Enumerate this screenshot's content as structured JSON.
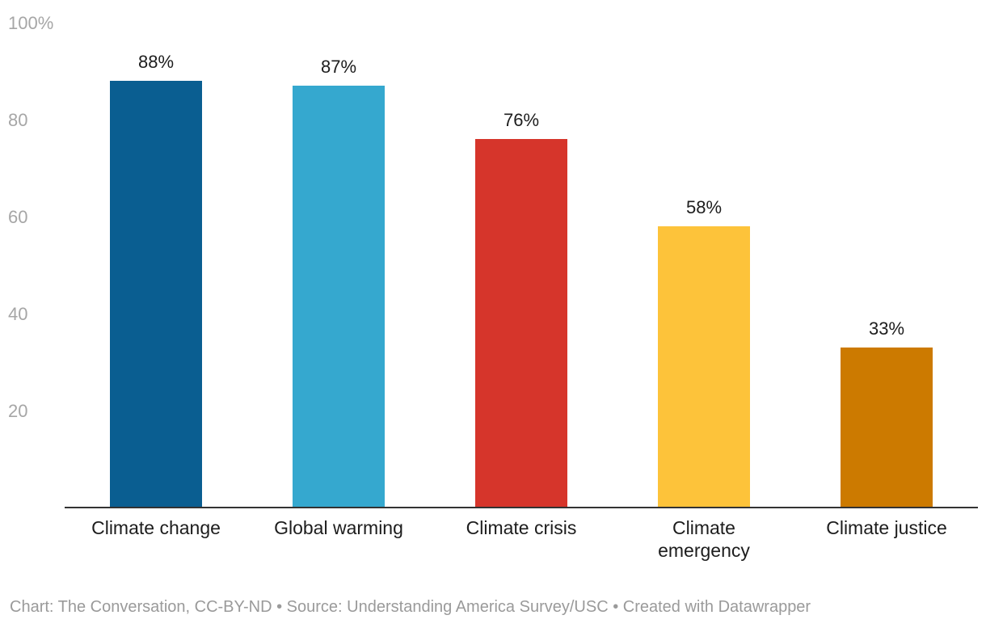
{
  "chart_data": {
    "type": "bar",
    "categories": [
      "Climate change",
      "Global warming",
      "Climate crisis",
      "Climate emergency",
      "Climate justice"
    ],
    "category_lines": [
      [
        "Climate change"
      ],
      [
        "Global warming"
      ],
      [
        "Climate crisis"
      ],
      [
        "Climate",
        "emergency"
      ],
      [
        "Climate justice"
      ]
    ],
    "values": [
      88,
      87,
      76,
      58,
      33
    ],
    "value_labels": [
      "88%",
      "87%",
      "76%",
      "58%",
      "33%"
    ],
    "colors": [
      "#0a5e91",
      "#35a8cf",
      "#d6352b",
      "#fdc33a",
      "#cc7a00"
    ],
    "ylim": [
      0,
      100
    ],
    "yticks": [
      20,
      40,
      60,
      80,
      100
    ],
    "ytick_labels": [
      "20",
      "40",
      "60",
      "80",
      "100%"
    ],
    "grid": false,
    "title": "",
    "xlabel": "",
    "ylabel": ""
  },
  "footer": {
    "credit": "Chart: The Conversation, CC-BY-ND • Source: Understanding America Survey/USC • Created with Datawrapper"
  }
}
